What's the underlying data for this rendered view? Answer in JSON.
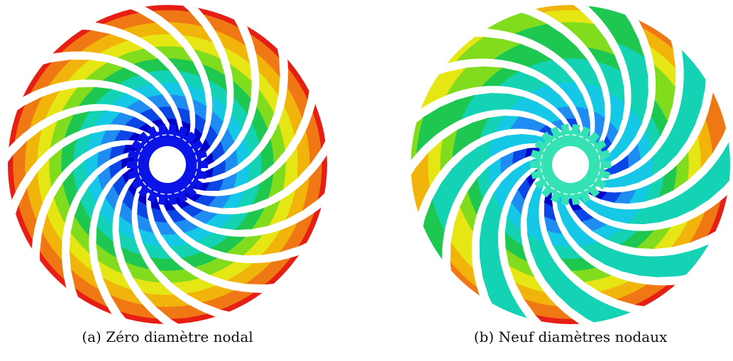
{
  "figures": [
    {
      "id": "a",
      "label": "(a)",
      "caption": "Zéro diamètre nodal",
      "hub_color": "#0a14e6",
      "pattern": "zero"
    },
    {
      "id": "b",
      "label": "(b)",
      "caption": "Neuf diamètres nodaux",
      "hub_color": "#34e2b4",
      "pattern": "nine"
    }
  ],
  "colormap": [
    "#0000c8",
    "#0a46e6",
    "#1e8cf0",
    "#14c8e6",
    "#14d2b4",
    "#1ec850",
    "#82dc1e",
    "#e6e614",
    "#f0b40a",
    "#f07814",
    "#e61e14"
  ],
  "blade_count": 19,
  "nodal_diameters": {
    "a": 0,
    "b": 9
  }
}
